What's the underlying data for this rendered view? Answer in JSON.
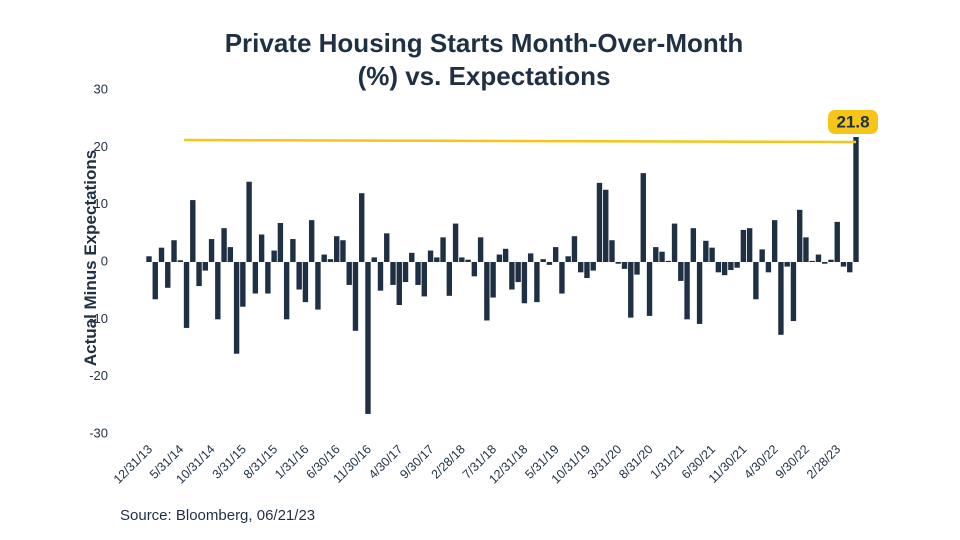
{
  "chart_data": {
    "type": "bar",
    "title": "Private Housing Starts Month-Over-Month",
    "title_line2": "(%) vs. Expectations",
    "y_label": "Actual Minus Expectations",
    "source": "Source: Bloomberg, 06/21/23",
    "color": "#1f3044",
    "annotation": {
      "label": "21.8",
      "value": 21.8,
      "color": "#f5c518"
    },
    "ylim": [
      -30,
      30
    ],
    "yticks": [
      -30,
      -20,
      -10,
      0,
      10,
      20,
      30
    ],
    "categories": [
      "12/31/13",
      null,
      null,
      null,
      null,
      "5/31/14",
      null,
      null,
      null,
      null,
      "10/31/14",
      null,
      null,
      null,
      null,
      "3/31/15",
      null,
      null,
      null,
      null,
      "8/31/15",
      null,
      null,
      null,
      null,
      "1/31/16",
      null,
      null,
      null,
      null,
      "6/30/16",
      null,
      null,
      null,
      null,
      "11/30/16",
      null,
      null,
      null,
      null,
      "4/30/17",
      null,
      null,
      null,
      null,
      "9/30/17",
      null,
      null,
      null,
      null,
      "2/28/18",
      null,
      null,
      null,
      null,
      "7/31/18",
      null,
      null,
      null,
      null,
      "12/31/18",
      null,
      null,
      null,
      null,
      "5/31/19",
      null,
      null,
      null,
      null,
      "10/31/19",
      null,
      null,
      null,
      null,
      "3/31/20",
      null,
      null,
      null,
      null,
      "8/31/20",
      null,
      null,
      null,
      null,
      "1/31/21",
      null,
      null,
      null,
      null,
      "6/30/21",
      null,
      null,
      null,
      null,
      "11/30/21",
      null,
      null,
      null,
      null,
      "4/30/22",
      null,
      null,
      null,
      null,
      "9/30/22",
      null,
      null,
      null,
      null,
      "2/28/23",
      null,
      null,
      null
    ],
    "values": [
      1,
      -6.5,
      2.5,
      -4.5,
      3.8,
      0.3,
      -11.5,
      10.8,
      -4.2,
      -1.5,
      4,
      -10,
      5.9,
      2.6,
      -16,
      -7.8,
      14,
      -5.5,
      4.8,
      -5.5,
      2,
      6.8,
      -10,
      4,
      -4.8,
      -7,
      7.3,
      -8.3,
      1.3,
      0.5,
      4.5,
      3.8,
      -4,
      -12,
      12,
      -26.5,
      0.8,
      -5,
      5,
      -4,
      -7.5,
      -3.5,
      1.6,
      -4,
      -6,
      2,
      0.8,
      4.3,
      -5.9,
      6.7,
      0.8,
      0.4,
      -2.5,
      4.3,
      -10.2,
      -6.2,
      1.3,
      2.3,
      -4.8,
      -3.5,
      -7.2,
      1.5,
      -7,
      0.5,
      -0.5,
      2.6,
      -5.5,
      1,
      4.5,
      -1.8,
      -2.8,
      -1.5,
      13.8,
      12.6,
      3.8,
      -0.3,
      -1.2,
      -9.7,
      -2.2,
      15.5,
      -9.4,
      2.6,
      1.8,
      0.2,
      6.7,
      -3.3,
      -10,
      5.9,
      -10.8,
      3.7,
      2.5,
      -1.8,
      -2.3,
      -1.4,
      -1,
      5.6,
      5.9,
      -6.5,
      2.2,
      -1.8,
      7.3,
      -12.7,
      -0.8,
      -10.3,
      9.1,
      4.3,
      0.2,
      1.3,
      -0.3,
      0.4,
      7,
      -0.8,
      -1.8,
      21.8
    ]
  }
}
